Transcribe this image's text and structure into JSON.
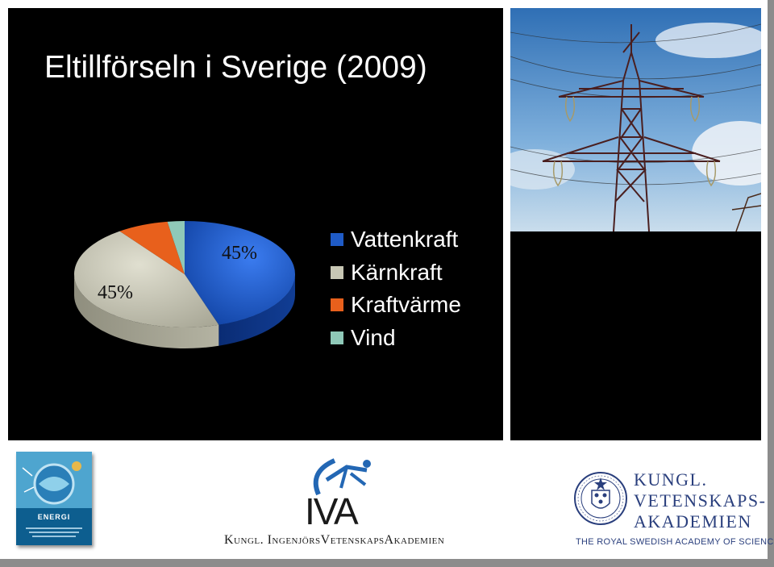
{
  "slide": {
    "title": "Eltillförseln i Sverige (2009)"
  },
  "chart_data": {
    "type": "pie",
    "style": "3d",
    "title": "",
    "categories": [
      "Vattenkraft",
      "Kärnkraft",
      "Kraftvärme",
      "Vind"
    ],
    "values": [
      45,
      45,
      7.5,
      2.5
    ],
    "data_labels": {
      "Vattenkraft": "45%",
      "Kärnkraft": "45%"
    },
    "colors": [
      "#1f5bc6",
      "#c8c7b4",
      "#e8601c",
      "#8fc9b8"
    ],
    "legend": {
      "placement": "right",
      "entries": [
        "Vattenkraft",
        "Kärnkraft",
        "Kraftvärme",
        "Vind"
      ]
    }
  },
  "footer": {
    "booklet_label": "ENERGI",
    "iva_logo_text": "IVA",
    "iva_caption": "Kungl. IngenjörsVetenskapsAkademien",
    "kva_name_line1": "KUNGL.",
    "kva_name_line2": "VETENSKAPS-",
    "kva_name_line3": "AKADEMIEN",
    "kva_caption": "THE ROYAL SWEDISH ACADEMY OF SCIENCES"
  },
  "icons": {
    "photo": "power-pylon-photo",
    "iva": "iva-runner-logo",
    "kva": "kva-seal-logo"
  }
}
